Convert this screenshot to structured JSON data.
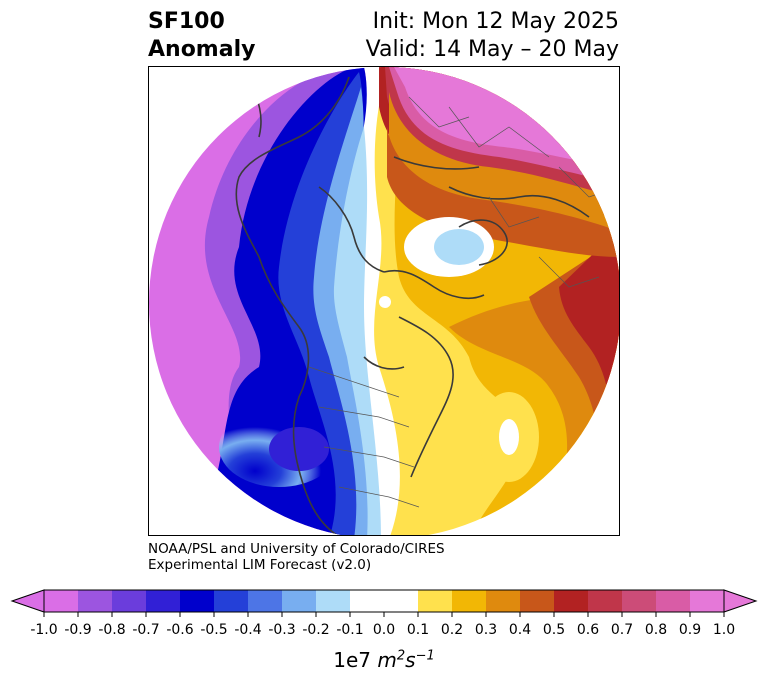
{
  "title": {
    "left_line1": "SF100",
    "left_line2": "Anomaly",
    "right_line1": "Init: Mon 12 May 2025",
    "right_line2": "Valid: 14 May – 20 May"
  },
  "credit": {
    "line1": "NOAA/PSL and University of Colorado/CIRES",
    "line2": "Experimental LIM Forecast (v2.0)"
  },
  "colorbar": {
    "ticks": [
      "-1.0",
      "-0.9",
      "-0.8",
      "-0.7",
      "-0.6",
      "-0.5",
      "-0.4",
      "-0.3",
      "-0.2",
      "-0.1",
      "0.0",
      "0.1",
      "0.2",
      "0.3",
      "0.4",
      "0.5",
      "0.6",
      "0.7",
      "0.8",
      "0.9",
      "1.0"
    ],
    "colors": [
      "#da6ee6",
      "#9c55e0",
      "#6b3ddc",
      "#3120d6",
      "#0000cc",
      "#2440d8",
      "#4d75e6",
      "#78aef0",
      "#aedcf8",
      "#ffffff",
      "#ffffff",
      "#ffe14d",
      "#f2b705",
      "#df8a0e",
      "#c8571a",
      "#b22222",
      "#c0364a",
      "#cc4c78",
      "#d95ca6",
      "#e578d8"
    ],
    "under_color": "#da6ee6",
    "over_color": "#e578d8",
    "unit_base": "1e7",
    "unit_m": "m",
    "unit_m_exp": "2",
    "unit_s": "s",
    "unit_s_exp": "−1"
  },
  "map": {
    "projection": "north-polar-stereographic",
    "negative_anomaly_region": "Pacific / western North America",
    "positive_anomaly_region": "Eurasia / eastern North America / Atlantic"
  }
}
